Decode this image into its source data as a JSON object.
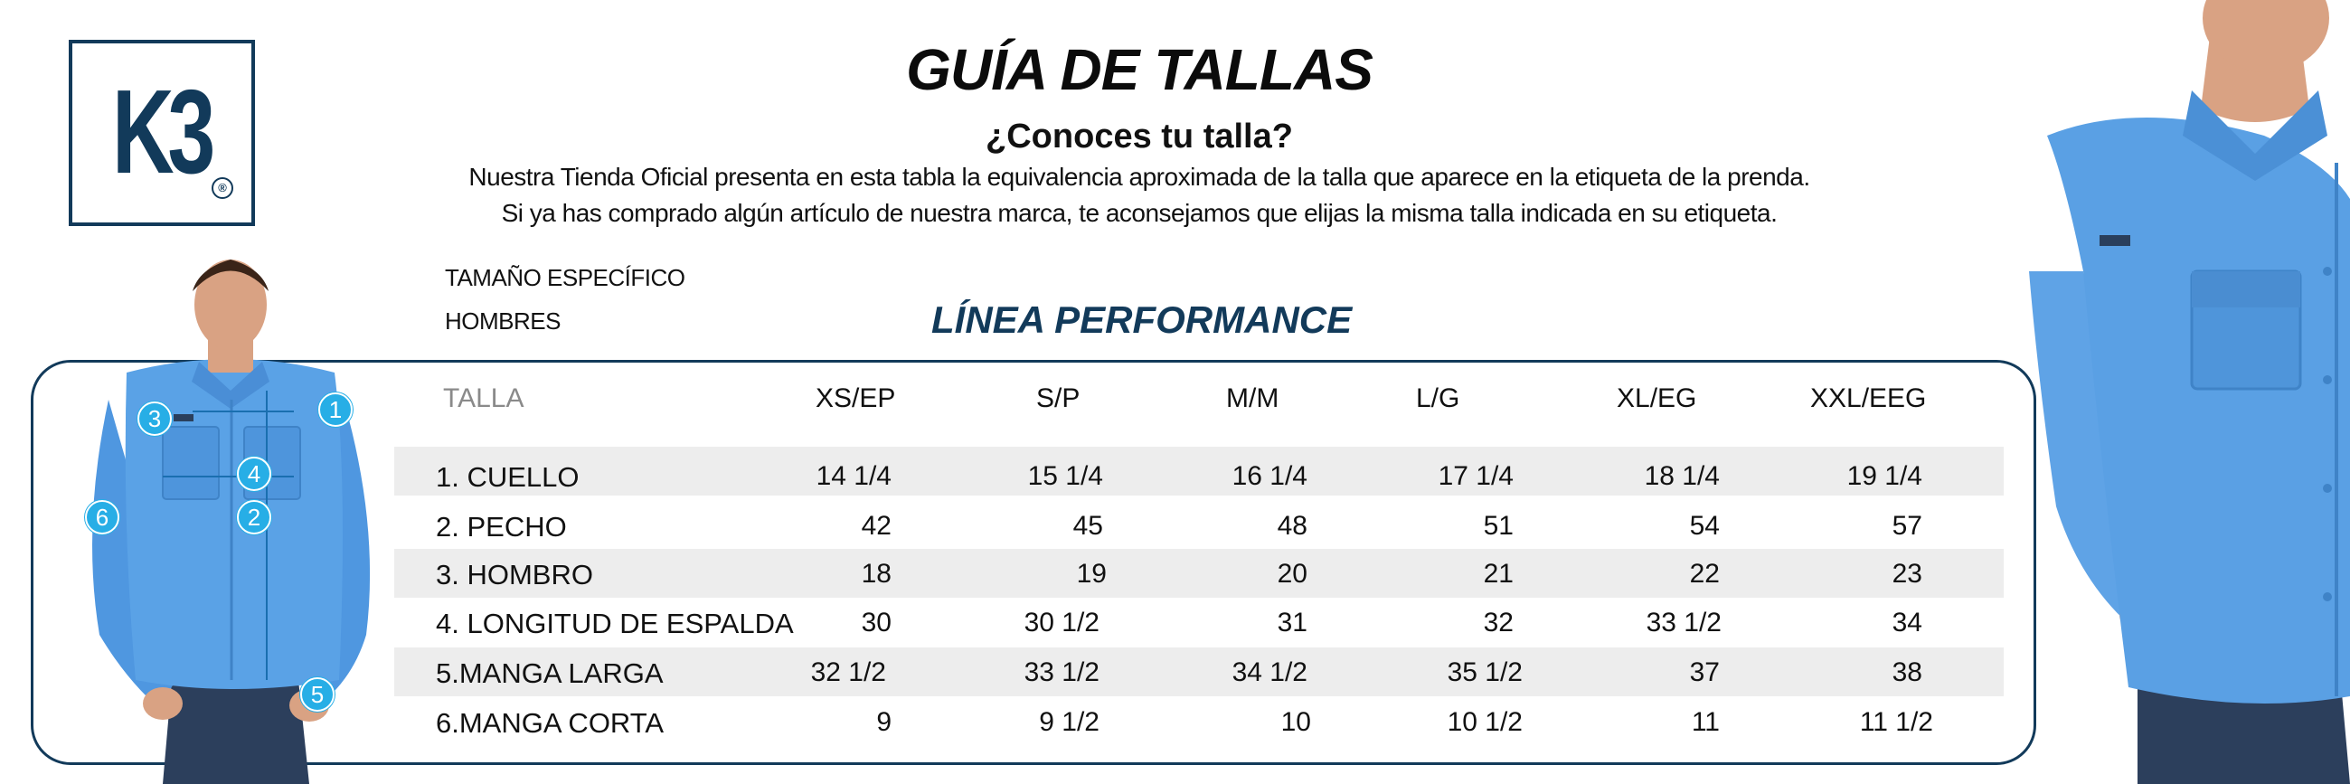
{
  "brand": {
    "logo_text": "K3",
    "registered": "®",
    "accent_color": "#123a5a"
  },
  "header": {
    "title": "GUÍA DE TALLAS",
    "subtitle": "¿Conoces tu talla?",
    "intro_line1": "Nuestra Tienda Oficial presenta en esta tabla la equivalencia aproximada de la talla que aparece en la etiqueta de la prenda.",
    "intro_line2": "Si ya has comprado algún artículo de nuestra marca, te aconsejamos que elijas la misma talla indicada en su etiqueta."
  },
  "spec": {
    "line1": "TAMAÑO ESPECÍFICO",
    "line2": "HOMBRES"
  },
  "line_name": "LÍNEA PERFORMANCE",
  "callouts": [
    "1",
    "2",
    "3",
    "4",
    "5",
    "6"
  ],
  "callout_color": "#27aee6",
  "table": {
    "header_label": "TALLA",
    "columns": [
      "XS/EP",
      "S/P",
      "M/M",
      "L/G",
      "XL/EG",
      "XXL/EEG"
    ],
    "rows": [
      {
        "label": "1. CUELLO",
        "values": [
          "14 1/4",
          "15 1/4",
          "16 1/4",
          "17 1/4",
          "18 1/4",
          "19 1/4"
        ]
      },
      {
        "label": "2. PECHO",
        "values": [
          "42",
          "45",
          "48",
          "51",
          "54",
          "57"
        ]
      },
      {
        "label": "3. HOMBRO",
        "values": [
          "18",
          "19",
          "20",
          "21",
          "22",
          "23"
        ]
      },
      {
        "label": "4. LONGITUD DE ESPALDA",
        "values": [
          "30",
          "30 1/2",
          "31",
          "32",
          "33 1/2",
          "34"
        ]
      },
      {
        "label": "5.MANGA LARGA",
        "values": [
          "32 1/2",
          "33 1/2",
          "34 1/2",
          "35 1/2",
          "37",
          "38"
        ]
      },
      {
        "label": "6.MANGA CORTA",
        "values": [
          "9",
          "9 1/2",
          "10",
          "10 1/2",
          "11",
          "11 1/2"
        ]
      }
    ],
    "shade_color": "#ededed"
  }
}
